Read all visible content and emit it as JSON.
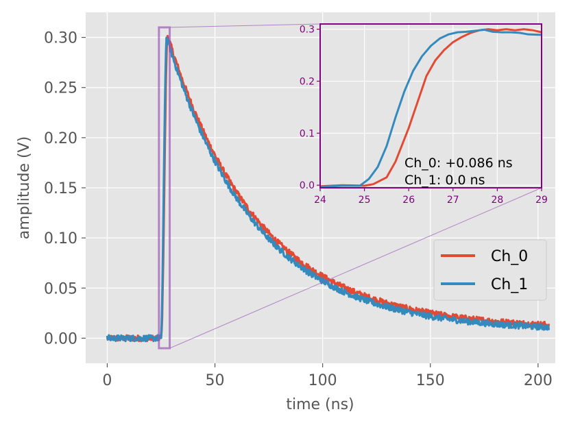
{
  "chart_data": {
    "type": "line",
    "xlabel": "time (ns)",
    "ylabel": "amplitude (V)",
    "xlim": [
      -10,
      208
    ],
    "ylim": [
      -0.025,
      0.325
    ],
    "xticks": [
      0,
      50,
      100,
      150,
      200
    ],
    "xtick_labels": [
      "0",
      "50",
      "100",
      "150",
      "200"
    ],
    "yticks": [
      0.0,
      0.05,
      0.1,
      0.15,
      0.2,
      0.25,
      0.3
    ],
    "ytick_labels": [
      "0.00",
      "0.05",
      "0.10",
      "0.15",
      "0.20",
      "0.25",
      "0.30"
    ],
    "grid": true,
    "legend_position": "right",
    "series": [
      {
        "name": "Ch_0",
        "color": "#E24A33",
        "onset_ns": 25.0,
        "peak_ns": 28.0,
        "peak_v": 0.302,
        "decay_tau_ns": 42,
        "tail_v": 0.009
      },
      {
        "name": "Ch_1",
        "color": "#348ABD",
        "onset_ns": 24.9,
        "peak_ns": 27.6,
        "peak_v": 0.3,
        "decay_tau_ns": 41,
        "tail_v": 0.007
      }
    ],
    "zoom_box": {
      "x_range": [
        24,
        29
      ],
      "y_range": [
        -0.01,
        0.31
      ]
    },
    "inset": {
      "xlim": [
        24,
        29
      ],
      "ylim": [
        -0.005,
        0.31
      ],
      "xticks": [
        24,
        25,
        26,
        27,
        28,
        29
      ],
      "xtick_labels": [
        "24",
        "25",
        "26",
        "27",
        "28",
        "29"
      ],
      "yticks": [
        0.0,
        0.1,
        0.2,
        0.3
      ],
      "ytick_labels": [
        "0.0",
        "0.1",
        "0.2",
        "0.3"
      ],
      "color": "#800080",
      "series": [
        {
          "name": "Ch_0",
          "points": [
            [
              24.0,
              -0.002
            ],
            [
              24.5,
              0.0
            ],
            [
              25.0,
              -0.001
            ],
            [
              25.2,
              0.002
            ],
            [
              25.5,
              0.015
            ],
            [
              25.7,
              0.045
            ],
            [
              26.0,
              0.11
            ],
            [
              26.2,
              0.16
            ],
            [
              26.4,
              0.21
            ],
            [
              26.6,
              0.24
            ],
            [
              26.8,
              0.26
            ],
            [
              27.0,
              0.275
            ],
            [
              27.2,
              0.285
            ],
            [
              27.4,
              0.293
            ],
            [
              27.6,
              0.298
            ],
            [
              27.8,
              0.3
            ],
            [
              28.0,
              0.298
            ],
            [
              28.2,
              0.3
            ],
            [
              28.4,
              0.298
            ],
            [
              28.6,
              0.3
            ],
            [
              28.8,
              0.298
            ],
            [
              29.0,
              0.294
            ]
          ]
        },
        {
          "name": "Ch_1",
          "points": [
            [
              24.0,
              -0.003
            ],
            [
              24.5,
              -0.001
            ],
            [
              24.9,
              -0.001
            ],
            [
              25.1,
              0.012
            ],
            [
              25.3,
              0.035
            ],
            [
              25.5,
              0.075
            ],
            [
              25.7,
              0.13
            ],
            [
              25.9,
              0.18
            ],
            [
              26.1,
              0.22
            ],
            [
              26.3,
              0.248
            ],
            [
              26.5,
              0.268
            ],
            [
              26.7,
              0.282
            ],
            [
              26.9,
              0.29
            ],
            [
              27.1,
              0.294
            ],
            [
              27.3,
              0.295
            ],
            [
              27.5,
              0.297
            ],
            [
              27.7,
              0.299
            ],
            [
              27.9,
              0.295
            ],
            [
              28.1,
              0.294
            ],
            [
              28.3,
              0.294
            ],
            [
              28.5,
              0.293
            ],
            [
              28.7,
              0.29
            ],
            [
              29.0,
              0.289
            ]
          ]
        }
      ],
      "annotations": [
        "Ch_0: +0.086 ns",
        "Ch_1: 0.0 ns"
      ]
    }
  }
}
